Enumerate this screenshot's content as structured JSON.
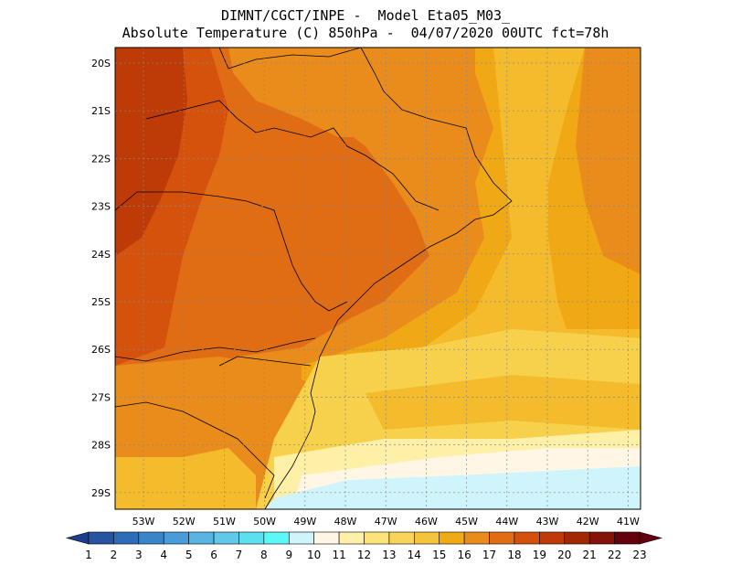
{
  "header": {
    "line1": "DIMNT/CGCT/INPE -  Model Eta05_M03_",
    "line2": "Absolute Temperature (C) 850hPa -  04/07/2020 00UTC fct=78h"
  },
  "map": {
    "lon_labels": [
      "53W",
      "52W",
      "51W",
      "50W",
      "49W",
      "48W",
      "47W",
      "46W",
      "45W",
      "44W",
      "43W",
      "42W",
      "41W"
    ],
    "lat_labels": [
      "20S",
      "21S",
      "22S",
      "23S",
      "24S",
      "25S",
      "26S",
      "27S",
      "28S",
      "29S"
    ]
  },
  "colorbar": {
    "labels": [
      "1",
      "2",
      "3",
      "4",
      "5",
      "6",
      "7",
      "8",
      "9",
      "10",
      "11",
      "12",
      "13",
      "14",
      "15",
      "16",
      "17",
      "18",
      "19",
      "20",
      "21",
      "22",
      "23"
    ],
    "colors": [
      "#1e3c8c",
      "#2654a0",
      "#2e6cb8",
      "#3a84c8",
      "#4a9cd8",
      "#58b4e0",
      "#60c8e8",
      "#5ce0f0",
      "#5cf8f8",
      "#d0f4fc",
      "#fff6e6",
      "#fff0a8",
      "#fde47a",
      "#f8d458",
      "#f4c43c",
      "#f0aa14",
      "#ea8c1c",
      "#e06c14",
      "#d4500c",
      "#c03a06",
      "#a22804",
      "#84140a",
      "#64000e"
    ]
  },
  "palette": {
    "c14": "#f7d04c",
    "c15": "#f4bc2c",
    "c16": "#f0a814",
    "c17": "#ea8c1c",
    "c18": "#e06c14",
    "c19": "#d4520c",
    "c20": "#be3a06",
    "c21": "#a22a04",
    "c12": "#fff0a8",
    "c11": "#fff6e6",
    "c10": "#d0f4fc"
  }
}
